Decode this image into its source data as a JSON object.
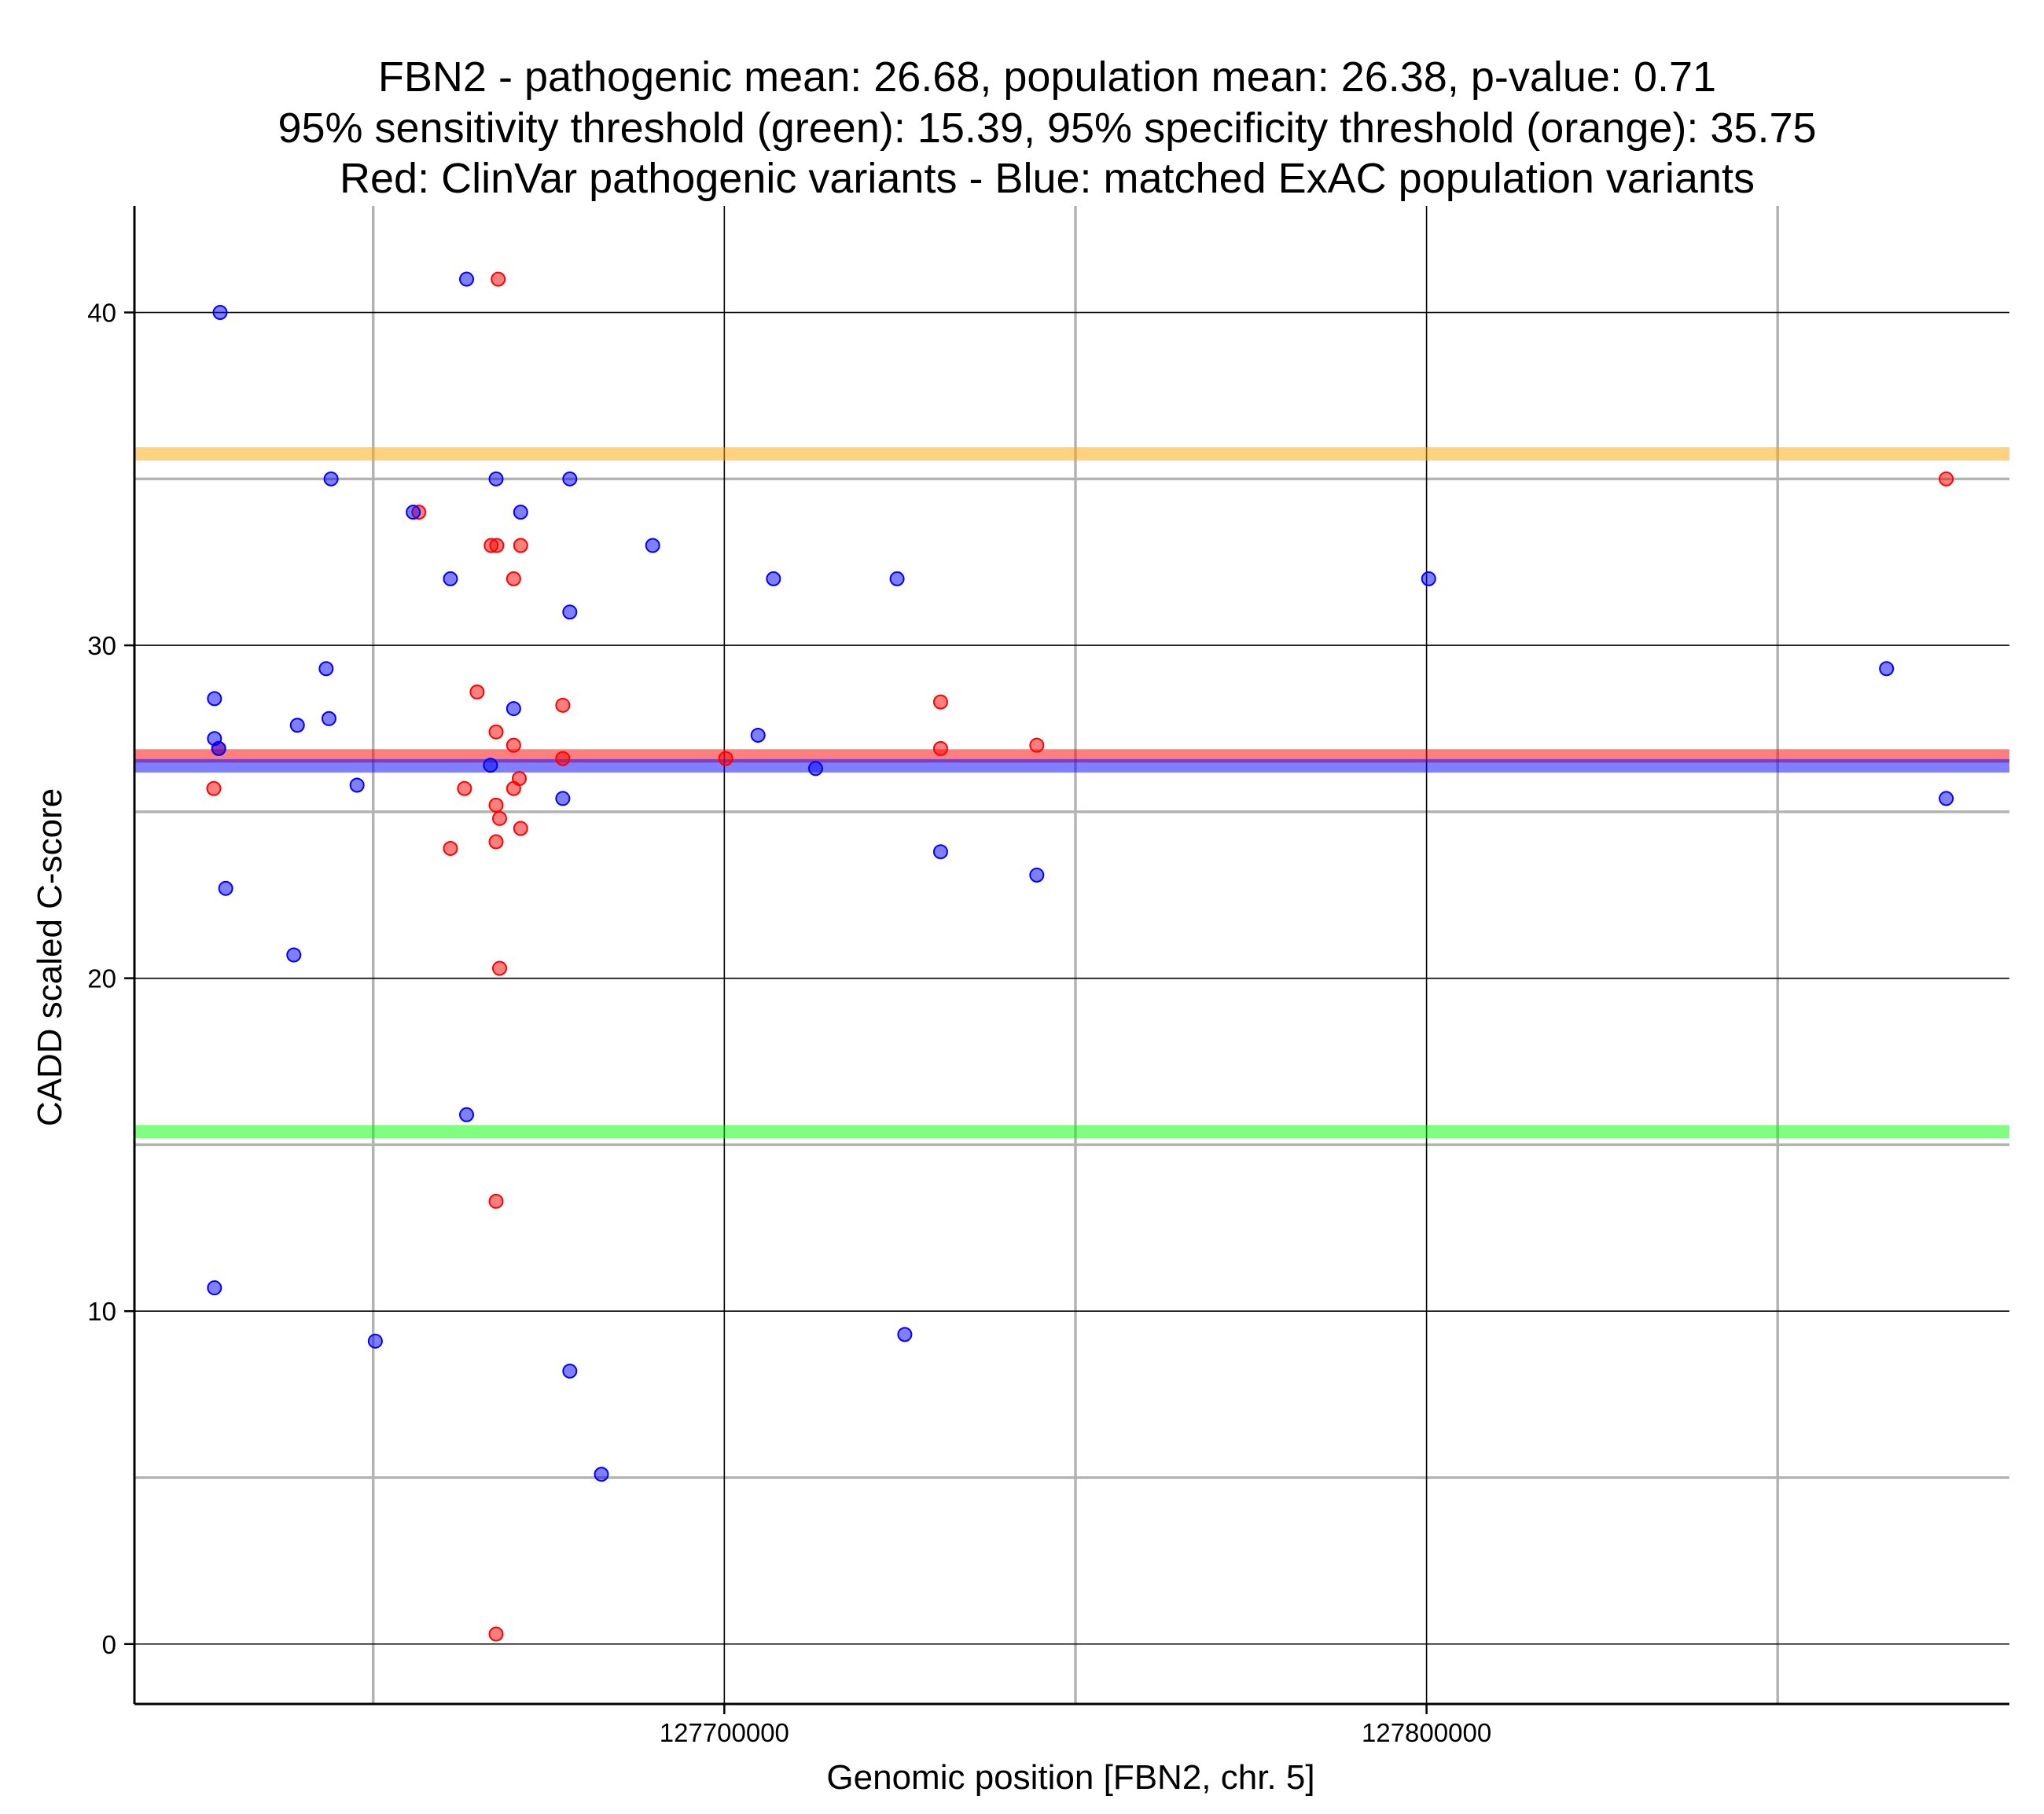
{
  "chart_data": {
    "type": "scatter",
    "title_lines": [
      "FBN2 - pathogenic mean: 26.68, population mean: 26.38, p-value: 0.71",
      "95% sensitivity threshold (green): 15.39, 95% specificity threshold (orange): 35.75",
      "Red: ClinVar pathogenic variants - Blue: matched ExAC population variants"
    ],
    "xlabel": "Genomic position [FBN2, chr. 5]",
    "ylabel": "CADD scaled C-score",
    "xlim": [
      127616000,
      127883000
    ],
    "ylim": [
      -1.8,
      43.2
    ],
    "x_ticks": [
      127700000,
      127800000
    ],
    "x_tick_labels": [
      "127700000",
      "127800000"
    ],
    "x_minor_gridlines": [
      127650000,
      127750000,
      127850000
    ],
    "y_ticks": [
      0,
      10,
      20,
      30,
      40
    ],
    "y_tick_labels": [
      "0",
      "10",
      "20",
      "30",
      "40"
    ],
    "y_minor_gridlines": [
      5,
      15,
      25,
      35
    ],
    "grid": true,
    "reference_lines": [
      {
        "name": "95% specificity threshold",
        "value": 35.75,
        "color": "#ffa500"
      },
      {
        "name": "pathogenic mean",
        "value": 26.68,
        "color": "#ff0000"
      },
      {
        "name": "population mean",
        "value": 26.38,
        "color": "#0000ff"
      },
      {
        "name": "95% sensitivity threshold",
        "value": 15.39,
        "color": "#00ff00"
      }
    ],
    "series": [
      {
        "name": "ClinVar pathogenic variants",
        "color": "#ff0000",
        "points": [
          [
            127667800,
            41.0
          ],
          [
            127656500,
            34.0
          ],
          [
            127666800,
            33.0
          ],
          [
            127667600,
            33.0
          ],
          [
            127671000,
            33.0
          ],
          [
            127670000,
            32.0
          ],
          [
            127664800,
            28.6
          ],
          [
            127667500,
            27.4
          ],
          [
            127670000,
            27.0
          ],
          [
            127670000,
            25.7
          ],
          [
            127670800,
            26.0
          ],
          [
            127667500,
            25.2
          ],
          [
            127668000,
            24.8
          ],
          [
            127671000,
            24.5
          ],
          [
            127667500,
            24.1
          ],
          [
            127661000,
            23.9
          ],
          [
            127663000,
            25.7
          ],
          [
            127677000,
            28.2
          ],
          [
            127677000,
            26.6
          ],
          [
            127668000,
            20.3
          ],
          [
            127667500,
            13.3
          ],
          [
            127667500,
            0.3
          ],
          [
            127628000,
            26.9
          ],
          [
            127627300,
            25.7
          ],
          [
            127730800,
            28.3
          ],
          [
            127730800,
            26.9
          ],
          [
            127744500,
            27.0
          ],
          [
            127700200,
            26.6
          ],
          [
            127874000,
            35.0
          ]
        ]
      },
      {
        "name": "matched ExAC population variants",
        "color": "#0000ff",
        "points": [
          [
            127628200,
            40.0
          ],
          [
            127663300,
            41.0
          ],
          [
            127644000,
            35.0
          ],
          [
            127667500,
            35.0
          ],
          [
            127678000,
            35.0
          ],
          [
            127655700,
            34.0
          ],
          [
            127671000,
            34.0
          ],
          [
            127689800,
            33.0
          ],
          [
            127661000,
            32.0
          ],
          [
            127707000,
            32.0
          ],
          [
            127724600,
            32.0
          ],
          [
            127800300,
            32.0
          ],
          [
            127678000,
            31.0
          ],
          [
            127627400,
            28.4
          ],
          [
            127643300,
            29.3
          ],
          [
            127670000,
            28.1
          ],
          [
            127639200,
            27.6
          ],
          [
            127643700,
            27.8
          ],
          [
            127627400,
            27.2
          ],
          [
            127628000,
            26.9
          ],
          [
            127704800,
            27.3
          ],
          [
            127666700,
            26.4
          ],
          [
            127713000,
            26.3
          ],
          [
            127647700,
            25.8
          ],
          [
            127677000,
            25.4
          ],
          [
            127629000,
            22.7
          ],
          [
            127638700,
            20.7
          ],
          [
            127730800,
            23.8
          ],
          [
            127744500,
            23.1
          ],
          [
            127663300,
            15.9
          ],
          [
            127627400,
            10.7
          ],
          [
            127650300,
            9.1
          ],
          [
            127725700,
            9.3
          ],
          [
            127678000,
            8.2
          ],
          [
            127682500,
            5.1
          ],
          [
            127865500,
            29.3
          ],
          [
            127874000,
            25.4
          ]
        ]
      }
    ]
  }
}
